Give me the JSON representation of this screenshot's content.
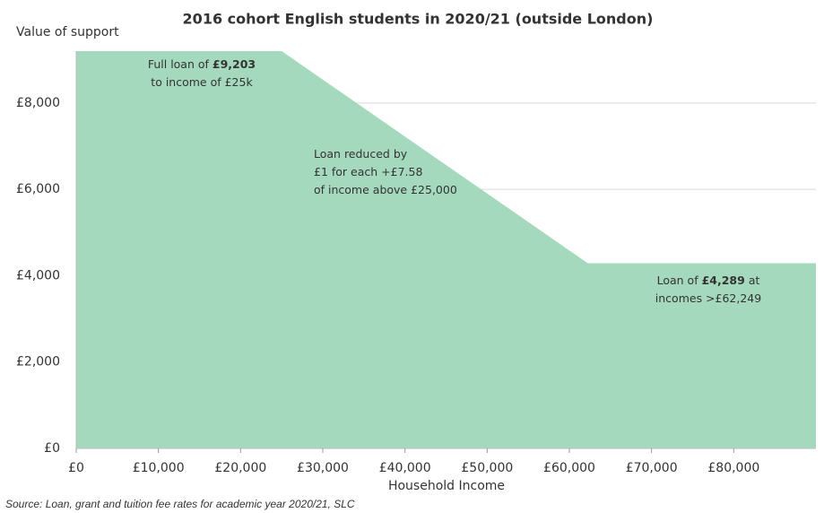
{
  "chart_data": {
    "type": "area",
    "title": "2016 cohort English students in 2020/21 (outside London)",
    "y_label": "Value of support",
    "x_label": "Household Income",
    "source": "Source: Loan, grant and tuition fee rates for academic year 2020/21, SLC",
    "x": [
      0,
      25000,
      62249,
      90000
    ],
    "series": [
      {
        "color": "#a5d9be",
        "values": [
          9203,
          9203,
          4289,
          4289
        ]
      }
    ],
    "xlim": [
      0,
      90000
    ],
    "xticks": [
      {
        "value": 0,
        "label": "£0"
      },
      {
        "value": 10000,
        "label": "£10,000"
      },
      {
        "value": 20000,
        "label": "£20,000"
      },
      {
        "value": 30000,
        "label": "£30,000"
      },
      {
        "value": 40000,
        "label": "£40,000"
      },
      {
        "value": 50000,
        "label": "£50,000"
      },
      {
        "value": 60000,
        "label": "£60,000"
      },
      {
        "value": 70000,
        "label": "£70,000"
      },
      {
        "value": 80000,
        "label": "£80,000"
      }
    ],
    "ylim": [
      0,
      9203
    ],
    "yticks": [
      {
        "value": 0,
        "label": "£0"
      },
      {
        "value": 2000,
        "label": "£2,000"
      },
      {
        "value": 4000,
        "label": "£4,000"
      },
      {
        "value": 6000,
        "label": "£6,000"
      },
      {
        "value": 8000,
        "label": "£8,000"
      }
    ],
    "grid": true,
    "annotations": [
      {
        "lines": [
          [
            "Full loan of ",
            "£9,203"
          ],
          [
            "to income of £25k"
          ]
        ]
      },
      {
        "lines": [
          [
            "Loan reduced by"
          ],
          [
            "£1 for each +£7.58"
          ],
          [
            "of income above £25,000"
          ]
        ]
      },
      {
        "lines": [
          [
            "Loan of ",
            "£4,289",
            " at"
          ],
          [
            "incomes >£62,249"
          ]
        ]
      }
    ]
  }
}
